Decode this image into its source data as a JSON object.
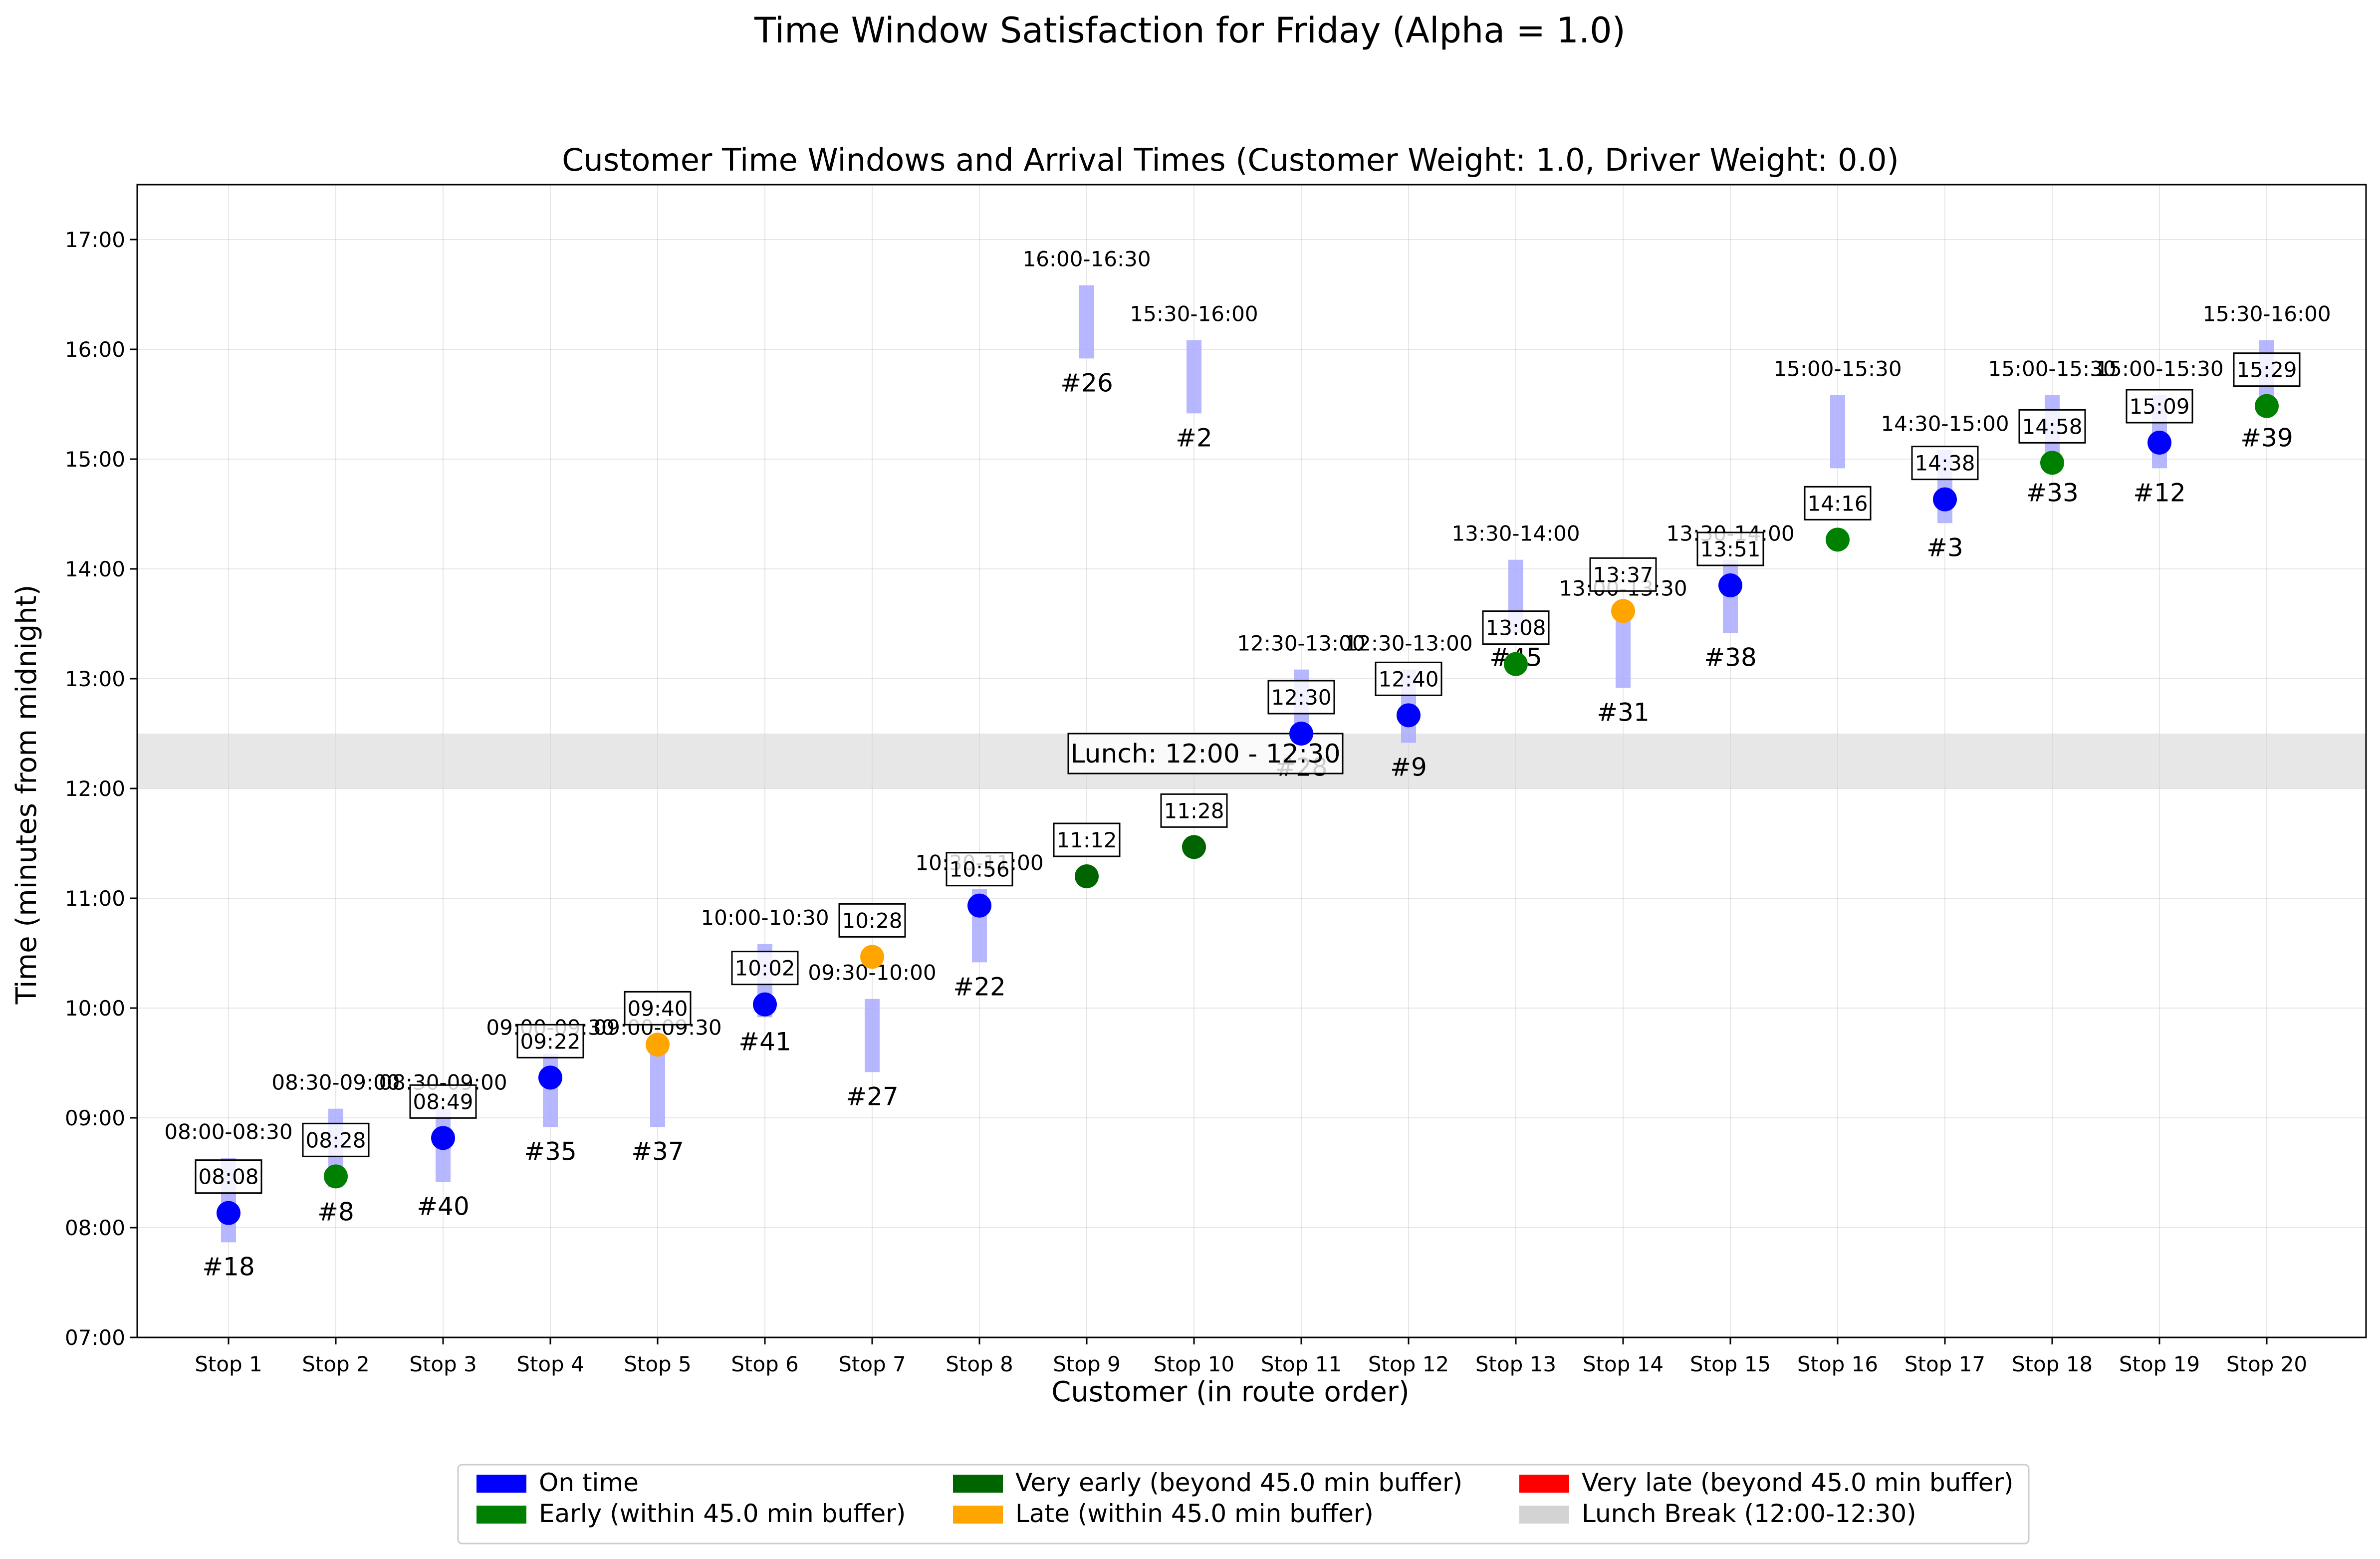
{
  "chart_data": {
    "type": "scatter",
    "suptitle": "Time Window Satisfaction for Friday (Alpha = 1.0)",
    "title": "Customer Time Windows and Arrival Times (Customer Weight: 1.0, Driver Weight: 0.0)",
    "xlabel": "Customer (in route order)",
    "ylabel": "Time (minutes from midnight)",
    "ylim": [
      "07:00",
      "17:30"
    ],
    "y_ticks": [
      "07:00",
      "08:00",
      "09:00",
      "10:00",
      "11:00",
      "12:00",
      "13:00",
      "14:00",
      "15:00",
      "16:00",
      "17:00"
    ],
    "grid": true,
    "lunch_break": {
      "start": "12:00",
      "end": "12:30",
      "label": "Lunch: 12:00 - 12:30"
    },
    "status_colors": {
      "on_time": "#0000ff",
      "early": "#008000",
      "very_early": "#006400",
      "late": "#ffa500",
      "very_late": "#ff0000",
      "window": "#aaaaff",
      "lunch": "#d3d3d3"
    },
    "stops": [
      {
        "stop": "Stop 1",
        "customer": "#18",
        "window": "08:00-08:30",
        "arrival": "08:08",
        "status": "on_time",
        "bar_start": "07:52",
        "bar_end": "08:38"
      },
      {
        "stop": "Stop 2",
        "customer": "#8",
        "window": "08:30-09:00",
        "arrival": "08:28",
        "status": "early",
        "bar_start": "08:22",
        "bar_end": "09:05"
      },
      {
        "stop": "Stop 3",
        "customer": "#40",
        "window": "08:30-09:00",
        "arrival": "08:49",
        "status": "on_time",
        "bar_start": "08:25",
        "bar_end": "09:05"
      },
      {
        "stop": "Stop 4",
        "customer": "#35",
        "window": "09:00-09:30",
        "arrival": "09:22",
        "status": "on_time",
        "bar_start": "08:55",
        "bar_end": "09:35"
      },
      {
        "stop": "Stop 5",
        "customer": "#37",
        "window": "09:00-09:30",
        "arrival": "09:40",
        "status": "late",
        "bar_start": "08:55",
        "bar_end": "09:35"
      },
      {
        "stop": "Stop 6",
        "customer": "#41",
        "window": "10:00-10:30",
        "arrival": "10:02",
        "status": "on_time",
        "bar_start": "09:55",
        "bar_end": "10:35"
      },
      {
        "stop": "Stop 7",
        "customer": "#27",
        "window": "09:30-10:00",
        "arrival": "10:28",
        "status": "late",
        "bar_start": "09:25",
        "bar_end": "10:05"
      },
      {
        "stop": "Stop 8",
        "customer": "#22",
        "window": "10:30-11:00",
        "arrival": "10:56",
        "status": "on_time",
        "bar_start": "10:25",
        "bar_end": "11:05"
      },
      {
        "stop": "Stop 9",
        "customer": "#26",
        "window": "16:00-16:30",
        "arrival": "11:12",
        "status": "very_early",
        "bar_start": "15:55",
        "bar_end": "16:35"
      },
      {
        "stop": "Stop 10",
        "customer": "#2",
        "window": "15:30-16:00",
        "arrival": "11:28",
        "status": "very_early",
        "bar_start": "15:25",
        "bar_end": "16:05"
      },
      {
        "stop": "Stop 11",
        "customer": "#28",
        "window": "12:30-13:00",
        "arrival": "12:30",
        "status": "on_time",
        "bar_start": "12:25",
        "bar_end": "13:05"
      },
      {
        "stop": "Stop 12",
        "customer": "#9",
        "window": "12:30-13:00",
        "arrival": "12:40",
        "status": "on_time",
        "bar_start": "12:25",
        "bar_end": "13:05"
      },
      {
        "stop": "Stop 13",
        "customer": "#45",
        "window": "13:30-14:00",
        "arrival": "13:08",
        "status": "early",
        "bar_start": "13:25",
        "bar_end": "14:05"
      },
      {
        "stop": "Stop 14",
        "customer": "#31",
        "window": "13:00-13:30",
        "arrival": "13:37",
        "status": "late",
        "bar_start": "12:55",
        "bar_end": "13:35"
      },
      {
        "stop": "Stop 15",
        "customer": "#38",
        "window": "13:30-14:00",
        "arrival": "13:51",
        "status": "on_time",
        "bar_start": "13:25",
        "bar_end": "14:05"
      },
      {
        "stop": "Stop 16",
        "customer": "",
        "window": "15:00-15:30",
        "arrival": "14:16",
        "status": "early",
        "bar_start": "14:55",
        "bar_end": "15:35"
      },
      {
        "stop": "Stop 17",
        "customer": "#3",
        "window": "14:30-15:00",
        "arrival": "14:38",
        "status": "on_time",
        "bar_start": "14:25",
        "bar_end": "15:05"
      },
      {
        "stop": "Stop 18",
        "customer": "#33",
        "window": "15:00-15:30",
        "arrival": "14:58",
        "status": "early",
        "bar_start": "14:55",
        "bar_end": "15:35"
      },
      {
        "stop": "Stop 19",
        "customer": "#12",
        "window": "15:00-15:30",
        "arrival": "15:09",
        "status": "on_time",
        "bar_start": "14:55",
        "bar_end": "15:35"
      },
      {
        "stop": "Stop 20",
        "customer": "#39",
        "window": "15:30-16:00",
        "arrival": "15:29",
        "status": "early",
        "bar_start": "15:25",
        "bar_end": "16:05"
      }
    ],
    "legend": {
      "placement": "bottom-center",
      "entries": [
        {
          "label": "On time",
          "color": "#0000ff"
        },
        {
          "label": "Early (within 45.0 min buffer)",
          "color": "#008000"
        },
        {
          "label": "Very early (beyond 45.0 min buffer)",
          "color": "#006400"
        },
        {
          "label": "Late (within 45.0 min buffer)",
          "color": "#ffa500"
        },
        {
          "label": "Very late (beyond 45.0 min buffer)",
          "color": "#ff0000"
        },
        {
          "label": "Lunch Break (12:00-12:30)",
          "color": "#d3d3d3"
        }
      ]
    }
  }
}
